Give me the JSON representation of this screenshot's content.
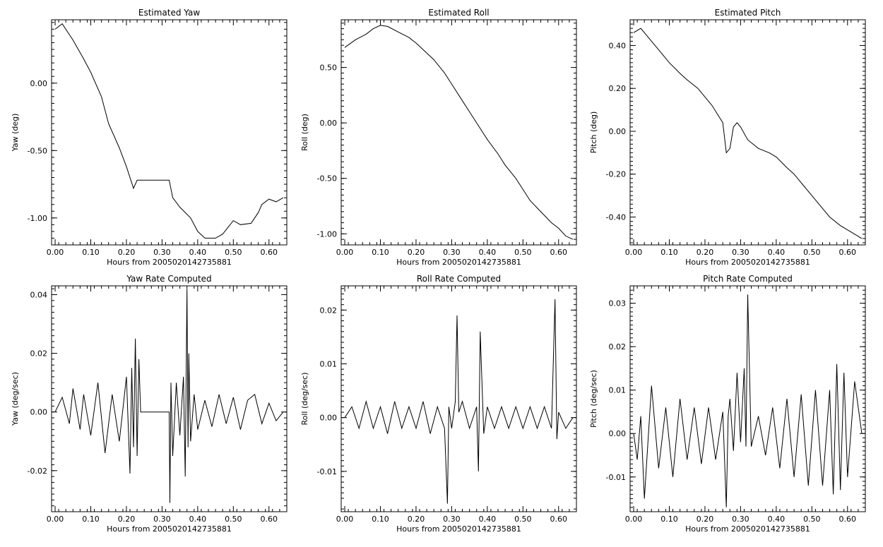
{
  "chart_data": [
    {
      "type": "line",
      "title": "Estimated Yaw",
      "xlabel": "Hours from 2005020142735881",
      "ylabel": "Yaw (deg)",
      "xlim": [
        -0.01,
        0.65
      ],
      "ylim": [
        -1.2,
        0.47
      ],
      "xticks": [
        "0.00",
        "0.10",
        "0.20",
        "0.30",
        "0.40",
        "0.50",
        "0.60"
      ],
      "yticks": [
        "0.00",
        "-0.50",
        "-1.00"
      ],
      "x": [
        0.0,
        0.02,
        0.05,
        0.08,
        0.1,
        0.13,
        0.15,
        0.18,
        0.2,
        0.22,
        0.23,
        0.28,
        0.32,
        0.33,
        0.35,
        0.38,
        0.4,
        0.42,
        0.45,
        0.47,
        0.5,
        0.52,
        0.55,
        0.57,
        0.58,
        0.6,
        0.62,
        0.64
      ],
      "series": [
        {
          "values": [
            0.4,
            0.44,
            0.32,
            0.18,
            0.08,
            -0.1,
            -0.3,
            -0.48,
            -0.62,
            -0.78,
            -0.72,
            -0.72,
            -0.72,
            -0.85,
            -0.92,
            -1.0,
            -1.1,
            -1.15,
            -1.15,
            -1.12,
            -1.02,
            -1.05,
            -1.04,
            -0.96,
            -0.9,
            -0.86,
            -0.88,
            -0.85
          ]
        }
      ]
    },
    {
      "type": "line",
      "title": "Estimated Roll",
      "xlabel": "Hours from 2005020142735881",
      "ylabel": "Roll (deg)",
      "xlim": [
        -0.01,
        0.65
      ],
      "ylim": [
        -1.1,
        0.93
      ],
      "xticks": [
        "0.00",
        "0.10",
        "0.20",
        "0.30",
        "0.40",
        "0.50",
        "0.60"
      ],
      "yticks": [
        "0.50",
        "0.00",
        "-0.50",
        "-1.00"
      ],
      "x": [
        0.0,
        0.03,
        0.06,
        0.08,
        0.1,
        0.12,
        0.15,
        0.18,
        0.2,
        0.25,
        0.28,
        0.3,
        0.33,
        0.35,
        0.38,
        0.4,
        0.43,
        0.45,
        0.48,
        0.5,
        0.52,
        0.55,
        0.58,
        0.6,
        0.62,
        0.64
      ],
      "series": [
        {
          "values": [
            0.68,
            0.75,
            0.8,
            0.85,
            0.88,
            0.87,
            0.82,
            0.77,
            0.72,
            0.57,
            0.45,
            0.35,
            0.2,
            0.1,
            -0.05,
            -0.15,
            -0.28,
            -0.38,
            -0.5,
            -0.6,
            -0.7,
            -0.8,
            -0.9,
            -0.95,
            -1.02,
            -1.05
          ]
        }
      ]
    },
    {
      "type": "line",
      "title": "Estimated Pitch",
      "xlabel": "Hours from 2005020142735881",
      "ylabel": "Pitch (deg)",
      "xlim": [
        -0.01,
        0.65
      ],
      "ylim": [
        -0.53,
        0.52
      ],
      "xticks": [
        "0.00",
        "0.10",
        "0.20",
        "0.30",
        "0.40",
        "0.50",
        "0.60"
      ],
      "yticks": [
        "0.40",
        "0.20",
        "0.00",
        "-0.20",
        "-0.40"
      ],
      "x": [
        0.0,
        0.02,
        0.05,
        0.08,
        0.1,
        0.13,
        0.15,
        0.18,
        0.2,
        0.22,
        0.25,
        0.26,
        0.27,
        0.28,
        0.29,
        0.3,
        0.32,
        0.35,
        0.38,
        0.4,
        0.43,
        0.45,
        0.48,
        0.5,
        0.52,
        0.55,
        0.58,
        0.6,
        0.62,
        0.64
      ],
      "series": [
        {
          "values": [
            0.46,
            0.48,
            0.42,
            0.36,
            0.32,
            0.27,
            0.24,
            0.2,
            0.16,
            0.12,
            0.04,
            -0.1,
            -0.08,
            0.02,
            0.04,
            0.02,
            -0.04,
            -0.08,
            -0.1,
            -0.12,
            -0.17,
            -0.2,
            -0.26,
            -0.3,
            -0.34,
            -0.4,
            -0.44,
            -0.46,
            -0.48,
            -0.5
          ]
        }
      ]
    },
    {
      "type": "line",
      "title": "Yaw Rate Computed",
      "xlabel": "Hours from 2005020142735881",
      "ylabel": "Yaw (deg/sec)",
      "xlim": [
        -0.01,
        0.65
      ],
      "ylim": [
        -0.034,
        0.043
      ],
      "xticks": [
        "0.00",
        "0.10",
        "0.20",
        "0.30",
        "0.40",
        "0.50",
        "0.60"
      ],
      "yticks": [
        "0.04",
        "0.02",
        "0.00",
        "-0.02"
      ],
      "x": [
        0.0,
        0.02,
        0.04,
        0.05,
        0.07,
        0.08,
        0.1,
        0.12,
        0.14,
        0.16,
        0.18,
        0.2,
        0.21,
        0.215,
        0.22,
        0.225,
        0.23,
        0.235,
        0.24,
        0.32,
        0.322,
        0.325,
        0.33,
        0.34,
        0.35,
        0.36,
        0.365,
        0.37,
        0.373,
        0.375,
        0.38,
        0.39,
        0.4,
        0.42,
        0.44,
        0.46,
        0.48,
        0.5,
        0.52,
        0.54,
        0.56,
        0.58,
        0.6,
        0.62,
        0.64
      ],
      "series": [
        {
          "values": [
            0.0,
            0.005,
            -0.004,
            0.008,
            -0.006,
            0.006,
            -0.008,
            0.01,
            -0.014,
            0.006,
            -0.01,
            0.012,
            -0.021,
            0.015,
            -0.012,
            0.025,
            -0.015,
            0.018,
            0.0,
            0.0,
            -0.031,
            0.01,
            -0.015,
            0.01,
            -0.008,
            0.012,
            -0.022,
            0.042,
            -0.012,
            0.02,
            -0.01,
            0.006,
            -0.006,
            0.004,
            -0.005,
            0.006,
            -0.004,
            0.005,
            -0.006,
            0.004,
            0.006,
            -0.004,
            0.003,
            -0.003,
            0.0
          ]
        }
      ]
    },
    {
      "type": "line",
      "title": "Roll Rate Computed",
      "xlabel": "Hours from 2005020142735881",
      "ylabel": "Roll (deg/sec)",
      "xlim": [
        -0.01,
        0.65
      ],
      "ylim": [
        -0.0175,
        0.0245
      ],
      "xticks": [
        "0.00",
        "0.10",
        "0.20",
        "0.30",
        "0.40",
        "0.50",
        "0.60"
      ],
      "yticks": [
        "0.02",
        "0.01",
        "0.00",
        "-0.01"
      ],
      "x": [
        0.0,
        0.02,
        0.04,
        0.06,
        0.08,
        0.1,
        0.12,
        0.14,
        0.16,
        0.18,
        0.2,
        0.22,
        0.24,
        0.26,
        0.28,
        0.288,
        0.292,
        0.3,
        0.31,
        0.315,
        0.32,
        0.33,
        0.35,
        0.37,
        0.375,
        0.38,
        0.39,
        0.4,
        0.42,
        0.44,
        0.46,
        0.48,
        0.5,
        0.52,
        0.54,
        0.56,
        0.58,
        0.59,
        0.595,
        0.6,
        0.62,
        0.64
      ],
      "series": [
        {
          "values": [
            0.0,
            0.002,
            -0.002,
            0.003,
            -0.002,
            0.002,
            -0.003,
            0.003,
            -0.002,
            0.002,
            -0.002,
            0.003,
            -0.003,
            0.002,
            -0.002,
            -0.016,
            0.002,
            -0.002,
            0.003,
            0.019,
            0.001,
            0.003,
            -0.002,
            0.002,
            -0.01,
            0.016,
            -0.003,
            0.002,
            -0.002,
            0.002,
            -0.002,
            0.002,
            -0.002,
            0.002,
            -0.002,
            0.002,
            -0.002,
            0.022,
            -0.004,
            0.001,
            -0.002,
            0.0
          ]
        }
      ]
    },
    {
      "type": "line",
      "title": "Pitch Rate Computed",
      "xlabel": "Hours from 2005020142735881",
      "ylabel": "Pitch (deg/sec)",
      "xlim": [
        -0.01,
        0.65
      ],
      "ylim": [
        -0.018,
        0.034
      ],
      "xticks": [
        "0.00",
        "0.10",
        "0.20",
        "0.30",
        "0.40",
        "0.50",
        "0.60"
      ],
      "yticks": [
        "0.03",
        "0.02",
        "0.01",
        "0.00",
        "-0.01"
      ],
      "x": [
        0.0,
        0.01,
        0.02,
        0.03,
        0.05,
        0.07,
        0.09,
        0.11,
        0.13,
        0.15,
        0.17,
        0.19,
        0.21,
        0.23,
        0.25,
        0.26,
        0.265,
        0.27,
        0.28,
        0.29,
        0.3,
        0.31,
        0.315,
        0.32,
        0.33,
        0.35,
        0.37,
        0.39,
        0.41,
        0.43,
        0.45,
        0.47,
        0.49,
        0.51,
        0.53,
        0.55,
        0.56,
        0.57,
        0.58,
        0.59,
        0.6,
        0.62,
        0.64
      ],
      "series": [
        {
          "values": [
            0.0,
            -0.006,
            0.004,
            -0.015,
            0.011,
            -0.008,
            0.006,
            -0.01,
            0.008,
            -0.006,
            0.006,
            -0.007,
            0.006,
            -0.006,
            0.005,
            -0.017,
            0.004,
            0.008,
            -0.004,
            0.014,
            -0.002,
            0.015,
            -0.003,
            0.032,
            -0.003,
            0.004,
            -0.005,
            0.006,
            -0.008,
            0.008,
            -0.01,
            0.009,
            -0.012,
            0.01,
            -0.012,
            0.01,
            -0.014,
            0.016,
            -0.013,
            0.014,
            -0.01,
            0.012,
            0.0
          ]
        }
      ]
    }
  ]
}
